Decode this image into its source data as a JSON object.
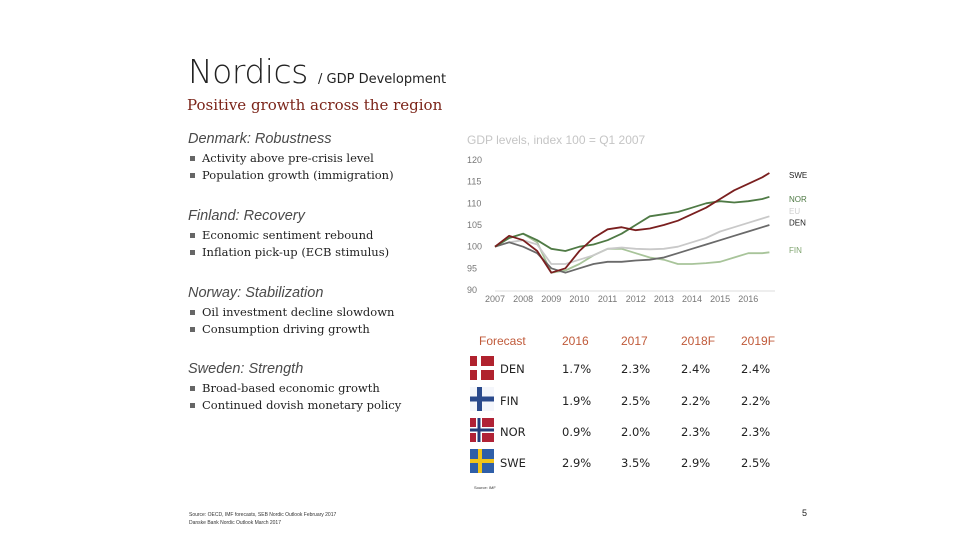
{
  "slide": {
    "title": "Nordics",
    "title_suffix": "/ GDP Development",
    "subtitle": "Positive growth across the region",
    "sections": [
      {
        "heading": "Denmark: Robustness",
        "bullets": [
          "Activity above pre-crisis level",
          "Population growth (immigration)"
        ]
      },
      {
        "heading": "Finland: Recovery",
        "bullets": [
          "Economic sentiment rebound",
          "Inflation pick-up (ECB stimulus)"
        ]
      },
      {
        "heading": "Norway: Stabilization",
        "bullets": [
          "Oil investment decline slowdown",
          "Consumption driving growth"
        ]
      },
      {
        "heading": "Sweden: Strength",
        "bullets": [
          "Broad-based economic growth",
          "Continued dovish monetary policy"
        ]
      }
    ],
    "footnote_line1": "Source: OECD, IMF forecasts, SEB Nordic Outlook February 2017",
    "footnote_line2": "Danske Bank Nordic Outlook March 2017",
    "page_number": "5"
  },
  "chart_data": {
    "type": "line",
    "title": "GDP levels, index 100 = Q1 2007",
    "ylim": [
      90,
      120
    ],
    "yticks": [
      "120",
      "115",
      "110",
      "105",
      "100",
      "95",
      "90"
    ],
    "xticks": [
      "2007",
      "2008",
      "2009",
      "2010",
      "2011",
      "2012",
      "2013",
      "2014",
      "2015",
      "2016"
    ],
    "x": [
      2007.0,
      2007.5,
      2008.0,
      2008.5,
      2009.0,
      2009.5,
      2010.0,
      2010.5,
      2011.0,
      2011.5,
      2012.0,
      2012.5,
      2013.0,
      2013.5,
      2014.0,
      2014.5,
      2015.0,
      2015.5,
      2016.0,
      2016.5,
      2016.75
    ],
    "series": [
      {
        "name": "SWE",
        "color": "#7a1f1f",
        "values": [
          100,
          102.5,
          101.5,
          99,
          94,
          95,
          99,
          102,
          104,
          104.5,
          103.8,
          104.2,
          105,
          106,
          107.5,
          109,
          111,
          113,
          114.5,
          116,
          117
        ]
      },
      {
        "name": "NOR",
        "color": "#4f7a45",
        "values": [
          100,
          102,
          103,
          101.5,
          99.5,
          99,
          100,
          100.5,
          101.5,
          103,
          105,
          107,
          107.5,
          108,
          109,
          110,
          110.5,
          110.2,
          110.5,
          111,
          111.5
        ]
      },
      {
        "name": "EU",
        "color": "#c9c9c9",
        "values": [
          100,
          101,
          101.5,
          100.5,
          96,
          96,
          97,
          98,
          99.5,
          99.8,
          99.5,
          99.4,
          99.5,
          100,
          101,
          102,
          103.5,
          104.5,
          105.5,
          106.5,
          107
        ]
      },
      {
        "name": "DEN",
        "color": "#6a6a6a",
        "values": [
          100,
          101,
          100,
          98.5,
          95,
          94,
          95,
          96,
          96.5,
          96.5,
          96.8,
          97,
          97.5,
          98.5,
          99.5,
          100.5,
          101.5,
          102.5,
          103.5,
          104.5,
          105
        ]
      },
      {
        "name": "FIN",
        "color": "#a8c49a",
        "values": [
          100,
          102,
          103,
          101,
          94,
          94.5,
          96,
          98,
          99.5,
          99.5,
          98.5,
          97.5,
          97,
          96,
          96,
          96.2,
          96.5,
          97.5,
          98.5,
          98.5,
          98.7
        ]
      }
    ]
  },
  "forecast_table": {
    "headers": [
      "Forecast",
      "2016",
      "2017",
      "2018F",
      "2019F"
    ],
    "rows": [
      {
        "country": "DEN",
        "flag": "denmark-flag-icon",
        "values": [
          "1.7%",
          "2.3%",
          "2.4%",
          "2.4%"
        ]
      },
      {
        "country": "FIN",
        "flag": "finland-flag-icon",
        "values": [
          "1.9%",
          "2.5%",
          "2.2%",
          "2.2%"
        ]
      },
      {
        "country": "NOR",
        "flag": "norway-flag-icon",
        "values": [
          "0.9%",
          "2.0%",
          "2.3%",
          "2.3%"
        ]
      },
      {
        "country": "SWE",
        "flag": "sweden-flag-icon",
        "values": [
          "2.9%",
          "3.5%",
          "2.9%",
          "2.5%"
        ]
      }
    ],
    "source": "Source: IMF"
  }
}
